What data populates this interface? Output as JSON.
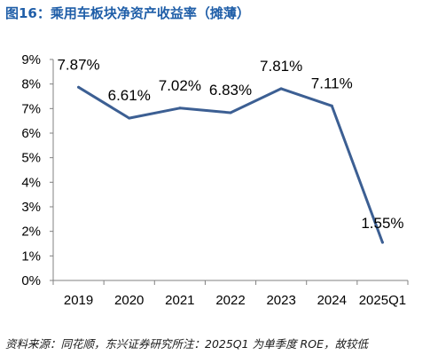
{
  "title": "图16：乘用车板块净资产收益率（摊薄）",
  "source": "资料来源：同花顺，东兴证券研究所注：2025Q1 为单季度 ROE，故较低",
  "chart_data": {
    "type": "line",
    "title": "乘用车板块净资产收益率（摊薄）",
    "categories": [
      "2019",
      "2020",
      "2021",
      "2022",
      "2023",
      "2024",
      "2025Q1"
    ],
    "values": [
      7.87,
      6.61,
      7.02,
      6.83,
      7.81,
      7.11,
      1.55
    ],
    "data_labels": [
      "7.87%",
      "6.61%",
      "7.02%",
      "6.83%",
      "7.81%",
      "7.11%",
      "1.55%"
    ],
    "y_ticks": [
      "0%",
      "1%",
      "2%",
      "3%",
      "4%",
      "5%",
      "6%",
      "7%",
      "8%",
      "9%"
    ],
    "ylim": [
      0,
      9
    ],
    "grid": false,
    "legend": "none",
    "line_color": "#3c5f93"
  }
}
